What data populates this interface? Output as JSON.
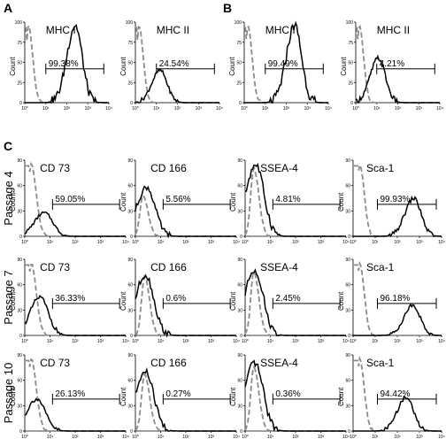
{
  "panel_labels": {
    "a": "A",
    "b": "B",
    "c": "C"
  },
  "y_axis_label": "Count",
  "x_ticks": [
    "10⁰",
    "10¹",
    "10²",
    "10³",
    "10⁴"
  ],
  "row_labels": [
    "Passage 4",
    "Passage 7",
    "Passage 10"
  ],
  "colors": {
    "sample": "#000000",
    "isotype_control": "#8c8c8c"
  },
  "chart_data": [
    {
      "type": "area",
      "panel": "A",
      "marker": "MHC I",
      "gate_percent": "99.38%",
      "x_scale": "log",
      "xlim": [
        1,
        10000
      ],
      "ylim": [
        0,
        100
      ],
      "y_ticks": [
        "0",
        "25",
        "50",
        "75",
        "100"
      ],
      "sample_peak": {
        "x": 250,
        "y": 96
      },
      "control_peak": {
        "x": 1.5,
        "y": 95
      }
    },
    {
      "type": "area",
      "panel": "A",
      "marker": "MHC II",
      "gate_percent": "24.54%",
      "x_scale": "log",
      "xlim": [
        1,
        10000
      ],
      "ylim": [
        0,
        100
      ],
      "y_ticks": [
        "0",
        "25",
        "50",
        "75",
        "100"
      ],
      "sample_peak": {
        "x": 15,
        "y": 40
      },
      "control_peak": {
        "x": 1.5,
        "y": 95
      }
    },
    {
      "type": "area",
      "panel": "B",
      "marker": "MHC I",
      "gate_percent": "99.49%",
      "x_scale": "log",
      "xlim": [
        1,
        10000
      ],
      "ylim": [
        0,
        100
      ],
      "y_ticks": [
        "0",
        "25",
        "50",
        "75",
        "100"
      ],
      "sample_peak": {
        "x": 250,
        "y": 96
      },
      "control_peak": {
        "x": 1.5,
        "y": 95
      }
    },
    {
      "type": "area",
      "panel": "B",
      "marker": "MHC II",
      "gate_percent": "4.21%",
      "x_scale": "log",
      "xlim": [
        1,
        10000
      ],
      "ylim": [
        0,
        100
      ],
      "y_ticks": [
        "0",
        "25",
        "50",
        "75",
        "100"
      ],
      "sample_peak": {
        "x": 12,
        "y": 55
      },
      "control_peak": {
        "x": 1.5,
        "y": 95
      }
    },
    {
      "type": "area",
      "panel": "C",
      "row": "Passage 4",
      "marker": "CD 73",
      "gate_percent": "59.05%",
      "x_scale": "log",
      "xlim": [
        1,
        10000
      ],
      "ylim": [
        0,
        90
      ],
      "y_ticks": [
        "0",
        "30",
        "60",
        "90"
      ],
      "sample_peak": {
        "x": 6,
        "y": 28
      },
      "control_peak": {
        "x": 1.8,
        "y": 85
      }
    },
    {
      "type": "area",
      "panel": "C",
      "row": "Passage 4",
      "marker": "CD 166",
      "gate_percent": "5.56%",
      "x_scale": "log",
      "xlim": [
        1,
        10000
      ],
      "ylim": [
        0,
        90
      ],
      "y_ticks": [
        "0",
        "30",
        "60",
        "90"
      ],
      "sample_peak": {
        "x": 2.8,
        "y": 58
      },
      "control_peak": {
        "x": 2,
        "y": 48
      }
    },
    {
      "type": "area",
      "panel": "C",
      "row": "Passage 4",
      "marker": "SSEA-4",
      "gate_percent": "4.81%",
      "x_scale": "log",
      "xlim": [
        1,
        10000
      ],
      "ylim": [
        0,
        90
      ],
      "y_ticks": [
        "0",
        "30",
        "60",
        "90"
      ],
      "sample_peak": {
        "x": 2.6,
        "y": 85
      },
      "control_peak": {
        "x": 2.2,
        "y": 80
      }
    },
    {
      "type": "area",
      "panel": "C",
      "row": "Passage 4",
      "marker": "Sca-1",
      "gate_percent": "99.93%",
      "x_scale": "log",
      "xlim": [
        1,
        10000
      ],
      "ylim": [
        0,
        90
      ],
      "y_ticks": [
        "0",
        "30",
        "60",
        "90"
      ],
      "sample_peak": {
        "x": 550,
        "y": 45
      },
      "control_peak": {
        "x": 2,
        "y": 85
      }
    },
    {
      "type": "area",
      "panel": "C",
      "row": "Passage 7",
      "marker": "CD 73",
      "gate_percent": "36.33%",
      "x_scale": "log",
      "xlim": [
        1,
        10000
      ],
      "ylim": [
        0,
        90
      ],
      "y_ticks": [
        "0",
        "30",
        "60",
        "90"
      ],
      "sample_peak": {
        "x": 4,
        "y": 45
      },
      "control_peak": {
        "x": 1.8,
        "y": 85
      }
    },
    {
      "type": "area",
      "panel": "C",
      "row": "Passage 7",
      "marker": "CD 166",
      "gate_percent": "0.6%",
      "x_scale": "log",
      "xlim": [
        1,
        10000
      ],
      "ylim": [
        0,
        90
      ],
      "y_ticks": [
        "0",
        "30",
        "60",
        "90"
      ],
      "sample_peak": {
        "x": 2.5,
        "y": 72
      },
      "control_peak": {
        "x": 2.3,
        "y": 70
      }
    },
    {
      "type": "area",
      "panel": "C",
      "row": "Passage 7",
      "marker": "SSEA-4",
      "gate_percent": "2.45%",
      "x_scale": "log",
      "xlim": [
        1,
        10000
      ],
      "ylim": [
        0,
        90
      ],
      "y_ticks": [
        "0",
        "30",
        "60",
        "90"
      ],
      "sample_peak": {
        "x": 2.4,
        "y": 78
      },
      "control_peak": {
        "x": 2.2,
        "y": 75
      }
    },
    {
      "type": "area",
      "panel": "C",
      "row": "Passage 7",
      "marker": "Sca-1",
      "gate_percent": "96.18%",
      "x_scale": "log",
      "xlim": [
        1,
        10000
      ],
      "ylim": [
        0,
        90
      ],
      "y_ticks": [
        "0",
        "30",
        "60",
        "90"
      ],
      "sample_peak": {
        "x": 500,
        "y": 36
      },
      "control_peak": {
        "x": 2,
        "y": 85
      }
    },
    {
      "type": "area",
      "panel": "C",
      "row": "Passage 10",
      "marker": "CD 73",
      "gate_percent": "26.13%",
      "x_scale": "log",
      "xlim": [
        1,
        10000
      ],
      "ylim": [
        0,
        90
      ],
      "y_ticks": [
        "0",
        "30",
        "60",
        "90"
      ],
      "sample_peak": {
        "x": 3,
        "y": 38
      },
      "control_peak": {
        "x": 1.8,
        "y": 85
      }
    },
    {
      "type": "area",
      "panel": "C",
      "row": "Passage 10",
      "marker": "CD 166",
      "gate_percent": "0.27%",
      "x_scale": "log",
      "xlim": [
        1,
        10000
      ],
      "ylim": [
        0,
        90
      ],
      "y_ticks": [
        "0",
        "30",
        "60",
        "90"
      ],
      "sample_peak": {
        "x": 2.5,
        "y": 70
      },
      "control_peak": {
        "x": 2.3,
        "y": 68
      }
    },
    {
      "type": "area",
      "panel": "C",
      "row": "Passage 10",
      "marker": "SSEA-4",
      "gate_percent": "0.36%",
      "x_scale": "log",
      "xlim": [
        1,
        10000
      ],
      "ylim": [
        0,
        90
      ],
      "y_ticks": [
        "0",
        "30",
        "60",
        "90"
      ],
      "sample_peak": {
        "x": 2.4,
        "y": 80
      },
      "control_peak": {
        "x": 2.2,
        "y": 76
      }
    },
    {
      "type": "area",
      "panel": "C",
      "row": "Passage 10",
      "marker": "Sca-1",
      "gate_percent": "94.42%",
      "x_scale": "log",
      "xlim": [
        1,
        10000
      ],
      "ylim": [
        0,
        90
      ],
      "y_ticks": [
        "0",
        "30",
        "60",
        "90"
      ],
      "sample_peak": {
        "x": 250,
        "y": 40
      },
      "control_peak": {
        "x": 2,
        "y": 85
      }
    }
  ]
}
